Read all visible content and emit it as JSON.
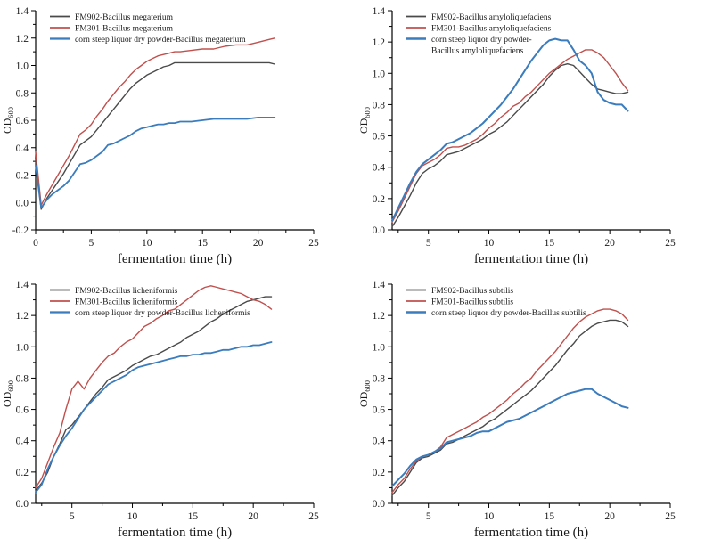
{
  "figure": {
    "xlabel": "fermentation time (h)",
    "ylabel_base": "OD",
    "ylabel_sub": "600",
    "background": "#ffffff"
  },
  "colors": {
    "axis": "#000000",
    "text": "#1a1a1a",
    "fm902": "#4a4a4a",
    "fm301": "#c0504d",
    "corn_steep": "#3a7cbe"
  },
  "chart_data": [
    {
      "id": "bacillus-megaterium",
      "type": "line",
      "title": "",
      "xlabel": "fermentation time (h)",
      "ylabel": "OD600",
      "xlim": [
        0,
        25
      ],
      "ylim": [
        -0.2,
        1.4
      ],
      "xticks": [
        0,
        5,
        10,
        15,
        20,
        25
      ],
      "yticks": [
        -0.2,
        0.0,
        0.2,
        0.4,
        0.6,
        0.8,
        1.0,
        1.2,
        1.4
      ],
      "grid": false,
      "legend_position": "top-left-inside",
      "x": [
        0,
        0.5,
        1,
        1.5,
        2,
        2.5,
        3,
        3.5,
        4,
        4.5,
        5,
        5.5,
        6,
        6.5,
        7,
        7.5,
        8,
        8.5,
        9,
        9.5,
        10,
        10.5,
        11,
        11.5,
        12,
        12.5,
        13,
        14,
        15,
        16,
        17,
        18,
        19,
        20,
        21,
        21.5
      ],
      "series": [
        {
          "name": "FM902-Bacillus megaterium",
          "label_lines": [
            "FM902-Bacillus megaterium"
          ],
          "color": "#4a4a4a",
          "width": 1.4,
          "y": [
            0.31,
            -0.05,
            0.03,
            0.09,
            0.15,
            0.21,
            0.28,
            0.35,
            0.42,
            0.45,
            0.48,
            0.53,
            0.58,
            0.63,
            0.68,
            0.73,
            0.78,
            0.83,
            0.87,
            0.9,
            0.93,
            0.95,
            0.97,
            0.99,
            1.0,
            1.02,
            1.02,
            1.02,
            1.02,
            1.02,
            1.02,
            1.02,
            1.02,
            1.02,
            1.02,
            1.01
          ]
        },
        {
          "name": "FM301-Bacillus megaterium",
          "label_lines": [
            "FM301-Bacillus megaterium"
          ],
          "color": "#c0504d",
          "width": 1.4,
          "y": [
            0.37,
            -0.02,
            0.06,
            0.13,
            0.2,
            0.27,
            0.34,
            0.42,
            0.5,
            0.53,
            0.57,
            0.63,
            0.68,
            0.74,
            0.79,
            0.84,
            0.88,
            0.93,
            0.97,
            1.0,
            1.03,
            1.05,
            1.07,
            1.08,
            1.09,
            1.1,
            1.1,
            1.11,
            1.12,
            1.12,
            1.14,
            1.15,
            1.15,
            1.17,
            1.19,
            1.2
          ]
        },
        {
          "name": "corn steep liquor dry powder-Bacillus megaterium",
          "label_lines": [
            "corn steep liquor dry powder-Bacillus megaterium"
          ],
          "color": "#3a7cbe",
          "width": 1.8,
          "y": [
            0.27,
            -0.04,
            0.02,
            0.06,
            0.09,
            0.12,
            0.16,
            0.22,
            0.28,
            0.29,
            0.31,
            0.34,
            0.37,
            0.42,
            0.43,
            0.45,
            0.47,
            0.49,
            0.52,
            0.54,
            0.55,
            0.56,
            0.57,
            0.57,
            0.58,
            0.58,
            0.59,
            0.59,
            0.6,
            0.61,
            0.61,
            0.61,
            0.61,
            0.62,
            0.62,
            0.62
          ]
        }
      ]
    },
    {
      "id": "bacillus-amyloliquefaciens",
      "type": "line",
      "title": "",
      "xlabel": "fermentation time (h)",
      "ylabel": "OD600",
      "xlim": [
        2,
        25
      ],
      "ylim": [
        0.0,
        1.4
      ],
      "xticks": [
        5,
        10,
        15,
        20,
        25
      ],
      "yticks": [
        0.0,
        0.2,
        0.4,
        0.6,
        0.8,
        1.0,
        1.2,
        1.4
      ],
      "grid": false,
      "legend_position": "top-left-inside",
      "x": [
        2,
        2.5,
        3,
        3.5,
        4,
        4.5,
        5,
        5.5,
        6,
        6.5,
        7,
        7.5,
        8,
        8.5,
        9,
        9.5,
        10,
        10.5,
        11,
        11.5,
        12,
        12.5,
        13,
        13.5,
        14,
        14.5,
        15,
        15.5,
        16,
        16.5,
        17,
        17.5,
        18,
        18.5,
        19,
        19.5,
        20,
        20.5,
        21,
        21.5
      ],
      "series": [
        {
          "name": "FM902-Bacillus amyloliquefaciens",
          "label_lines": [
            "FM902-Bacillus amyloliquefaciens"
          ],
          "color": "#4a4a4a",
          "width": 1.4,
          "y": [
            0.02,
            0.08,
            0.15,
            0.22,
            0.3,
            0.36,
            0.39,
            0.41,
            0.44,
            0.48,
            0.49,
            0.5,
            0.52,
            0.54,
            0.56,
            0.58,
            0.61,
            0.63,
            0.66,
            0.69,
            0.73,
            0.77,
            0.81,
            0.85,
            0.89,
            0.93,
            0.98,
            1.02,
            1.05,
            1.06,
            1.05,
            1.01,
            0.97,
            0.93,
            0.9,
            0.89,
            0.88,
            0.87,
            0.87,
            0.88
          ]
        },
        {
          "name": "FM301-Bacillus amyloliquefaciens",
          "label_lines": [
            "FM301-Bacillus amyloliquefaciens"
          ],
          "color": "#c0504d",
          "width": 1.4,
          "y": [
            0.05,
            0.12,
            0.2,
            0.28,
            0.36,
            0.41,
            0.43,
            0.45,
            0.48,
            0.52,
            0.53,
            0.53,
            0.54,
            0.56,
            0.58,
            0.61,
            0.65,
            0.68,
            0.72,
            0.75,
            0.79,
            0.81,
            0.85,
            0.88,
            0.92,
            0.96,
            1.0,
            1.03,
            1.06,
            1.09,
            1.11,
            1.13,
            1.15,
            1.15,
            1.13,
            1.1,
            1.05,
            1.0,
            0.94,
            0.89
          ]
        },
        {
          "name": "corn steep liquor dry powder-Bacillus amyloliquefaciens",
          "label_lines": [
            "corn steep liquor dry powder-",
            "Bacillus amyloliquefaciens"
          ],
          "color": "#3a7cbe",
          "width": 2,
          "y": [
            0.06,
            0.14,
            0.22,
            0.3,
            0.37,
            0.42,
            0.45,
            0.48,
            0.51,
            0.55,
            0.56,
            0.58,
            0.6,
            0.62,
            0.65,
            0.68,
            0.72,
            0.76,
            0.8,
            0.85,
            0.9,
            0.96,
            1.02,
            1.08,
            1.13,
            1.18,
            1.21,
            1.22,
            1.21,
            1.21,
            1.15,
            1.08,
            1.05,
            1.0,
            0.88,
            0.83,
            0.81,
            0.8,
            0.8,
            0.76
          ]
        }
      ]
    },
    {
      "id": "bacillus-licheniformis",
      "type": "line",
      "title": "",
      "xlabel": "fermentation time (h)",
      "ylabel": "OD600",
      "xlim": [
        2,
        25
      ],
      "ylim": [
        0.0,
        1.4
      ],
      "xticks": [
        5,
        10,
        15,
        20,
        25
      ],
      "yticks": [
        0.0,
        0.2,
        0.4,
        0.6,
        0.8,
        1.0,
        1.2,
        1.4
      ],
      "grid": false,
      "legend_position": "top-left-inside",
      "x": [
        2,
        2.5,
        3,
        3.5,
        4,
        4.5,
        5,
        5.5,
        6,
        6.5,
        7,
        7.5,
        8,
        8.5,
        9,
        9.5,
        10,
        10.5,
        11,
        11.5,
        12,
        12.5,
        13,
        13.5,
        14,
        14.5,
        15,
        15.5,
        16,
        16.5,
        17,
        17.5,
        18,
        18.5,
        19,
        19.5,
        20,
        20.5,
        21,
        21.5
      ],
      "series": [
        {
          "name": "FM902-Bacillus licheniformis",
          "label_lines": [
            "FM902-Bacillus licheniformis"
          ],
          "color": "#4a4a4a",
          "width": 1.4,
          "y": [
            0.08,
            0.13,
            0.2,
            0.3,
            0.38,
            0.47,
            0.5,
            0.55,
            0.6,
            0.65,
            0.7,
            0.74,
            0.79,
            0.81,
            0.83,
            0.85,
            0.88,
            0.9,
            0.92,
            0.94,
            0.95,
            0.97,
            0.99,
            1.01,
            1.03,
            1.06,
            1.08,
            1.1,
            1.13,
            1.16,
            1.18,
            1.21,
            1.23,
            1.25,
            1.27,
            1.29,
            1.3,
            1.31,
            1.32,
            1.32
          ]
        },
        {
          "name": "FM301-Bacillus licheniformis",
          "label_lines": [
            "FM301-Bacillus licheniformis"
          ],
          "color": "#c0504d",
          "width": 1.4,
          "y": [
            0.1,
            0.16,
            0.26,
            0.36,
            0.45,
            0.6,
            0.73,
            0.78,
            0.73,
            0.8,
            0.85,
            0.9,
            0.94,
            0.96,
            1.0,
            1.03,
            1.05,
            1.09,
            1.13,
            1.15,
            1.18,
            1.2,
            1.23,
            1.24,
            1.27,
            1.3,
            1.33,
            1.36,
            1.38,
            1.39,
            1.38,
            1.37,
            1.36,
            1.35,
            1.34,
            1.32,
            1.3,
            1.29,
            1.27,
            1.24
          ]
        },
        {
          "name": "corn steep liquor dry powder-Bacillus licheniformis",
          "label_lines": [
            "corn steep liquor dry powder-Bacillus licheniformis"
          ],
          "color": "#3a7cbe",
          "width": 1.8,
          "y": [
            0.07,
            0.12,
            0.22,
            0.3,
            0.37,
            0.43,
            0.48,
            0.54,
            0.6,
            0.64,
            0.68,
            0.72,
            0.76,
            0.78,
            0.8,
            0.82,
            0.85,
            0.87,
            0.88,
            0.89,
            0.9,
            0.91,
            0.92,
            0.93,
            0.94,
            0.94,
            0.95,
            0.95,
            0.96,
            0.96,
            0.97,
            0.98,
            0.98,
            0.99,
            1.0,
            1.0,
            1.01,
            1.01,
            1.02,
            1.03
          ]
        }
      ]
    },
    {
      "id": "bacillus-subtilis",
      "type": "line",
      "title": "",
      "xlabel": "fermentation time (h)",
      "ylabel": "OD600",
      "xlim": [
        2,
        25
      ],
      "ylim": [
        0.0,
        1.4
      ],
      "xticks": [
        5,
        10,
        15,
        20,
        25
      ],
      "yticks": [
        0.0,
        0.2,
        0.4,
        0.6,
        0.8,
        1.0,
        1.2,
        1.4
      ],
      "grid": false,
      "legend_position": "top-left-inside",
      "x": [
        2,
        2.5,
        3,
        3.5,
        4,
        4.5,
        5,
        5.5,
        6,
        6.5,
        7,
        7.5,
        8,
        8.5,
        9,
        9.5,
        10,
        10.5,
        11,
        11.5,
        12,
        12.5,
        13,
        13.5,
        14,
        14.5,
        15,
        15.5,
        16,
        16.5,
        17,
        17.5,
        18,
        18.5,
        19,
        19.5,
        20,
        20.5,
        21,
        21.5
      ],
      "series": [
        {
          "name": "FM902-Bacillus subtilis",
          "label_lines": [
            "FM902-Bacillus subtilis"
          ],
          "color": "#4a4a4a",
          "width": 1.4,
          "y": [
            0.05,
            0.1,
            0.14,
            0.2,
            0.26,
            0.29,
            0.3,
            0.32,
            0.34,
            0.38,
            0.39,
            0.41,
            0.43,
            0.45,
            0.47,
            0.49,
            0.52,
            0.54,
            0.57,
            0.6,
            0.63,
            0.66,
            0.69,
            0.72,
            0.76,
            0.8,
            0.84,
            0.88,
            0.93,
            0.98,
            1.02,
            1.07,
            1.1,
            1.13,
            1.15,
            1.16,
            1.17,
            1.17,
            1.16,
            1.13
          ]
        },
        {
          "name": "FM301-Bacillus subtilis",
          "label_lines": [
            "FM301-Bacillus subtilis"
          ],
          "color": "#c0504d",
          "width": 1.4,
          "y": [
            0.07,
            0.12,
            0.16,
            0.22,
            0.27,
            0.3,
            0.31,
            0.33,
            0.36,
            0.42,
            0.44,
            0.46,
            0.48,
            0.5,
            0.52,
            0.55,
            0.57,
            0.6,
            0.63,
            0.66,
            0.7,
            0.73,
            0.77,
            0.8,
            0.85,
            0.89,
            0.93,
            0.97,
            1.02,
            1.07,
            1.12,
            1.16,
            1.19,
            1.21,
            1.23,
            1.24,
            1.24,
            1.23,
            1.21,
            1.17
          ]
        },
        {
          "name": "corn steep liquor dry powder-Bacillus subtilis",
          "label_lines": [
            "corn steep liquor dry powder-Bacillus subtilis"
          ],
          "color": "#3a7cbe",
          "width": 2,
          "y": [
            0.11,
            0.15,
            0.19,
            0.24,
            0.28,
            0.3,
            0.31,
            0.33,
            0.35,
            0.39,
            0.4,
            0.41,
            0.42,
            0.43,
            0.45,
            0.46,
            0.46,
            0.48,
            0.5,
            0.52,
            0.53,
            0.54,
            0.56,
            0.58,
            0.6,
            0.62,
            0.64,
            0.66,
            0.68,
            0.7,
            0.71,
            0.72,
            0.73,
            0.73,
            0.7,
            0.68,
            0.66,
            0.64,
            0.62,
            0.61
          ]
        }
      ]
    }
  ]
}
